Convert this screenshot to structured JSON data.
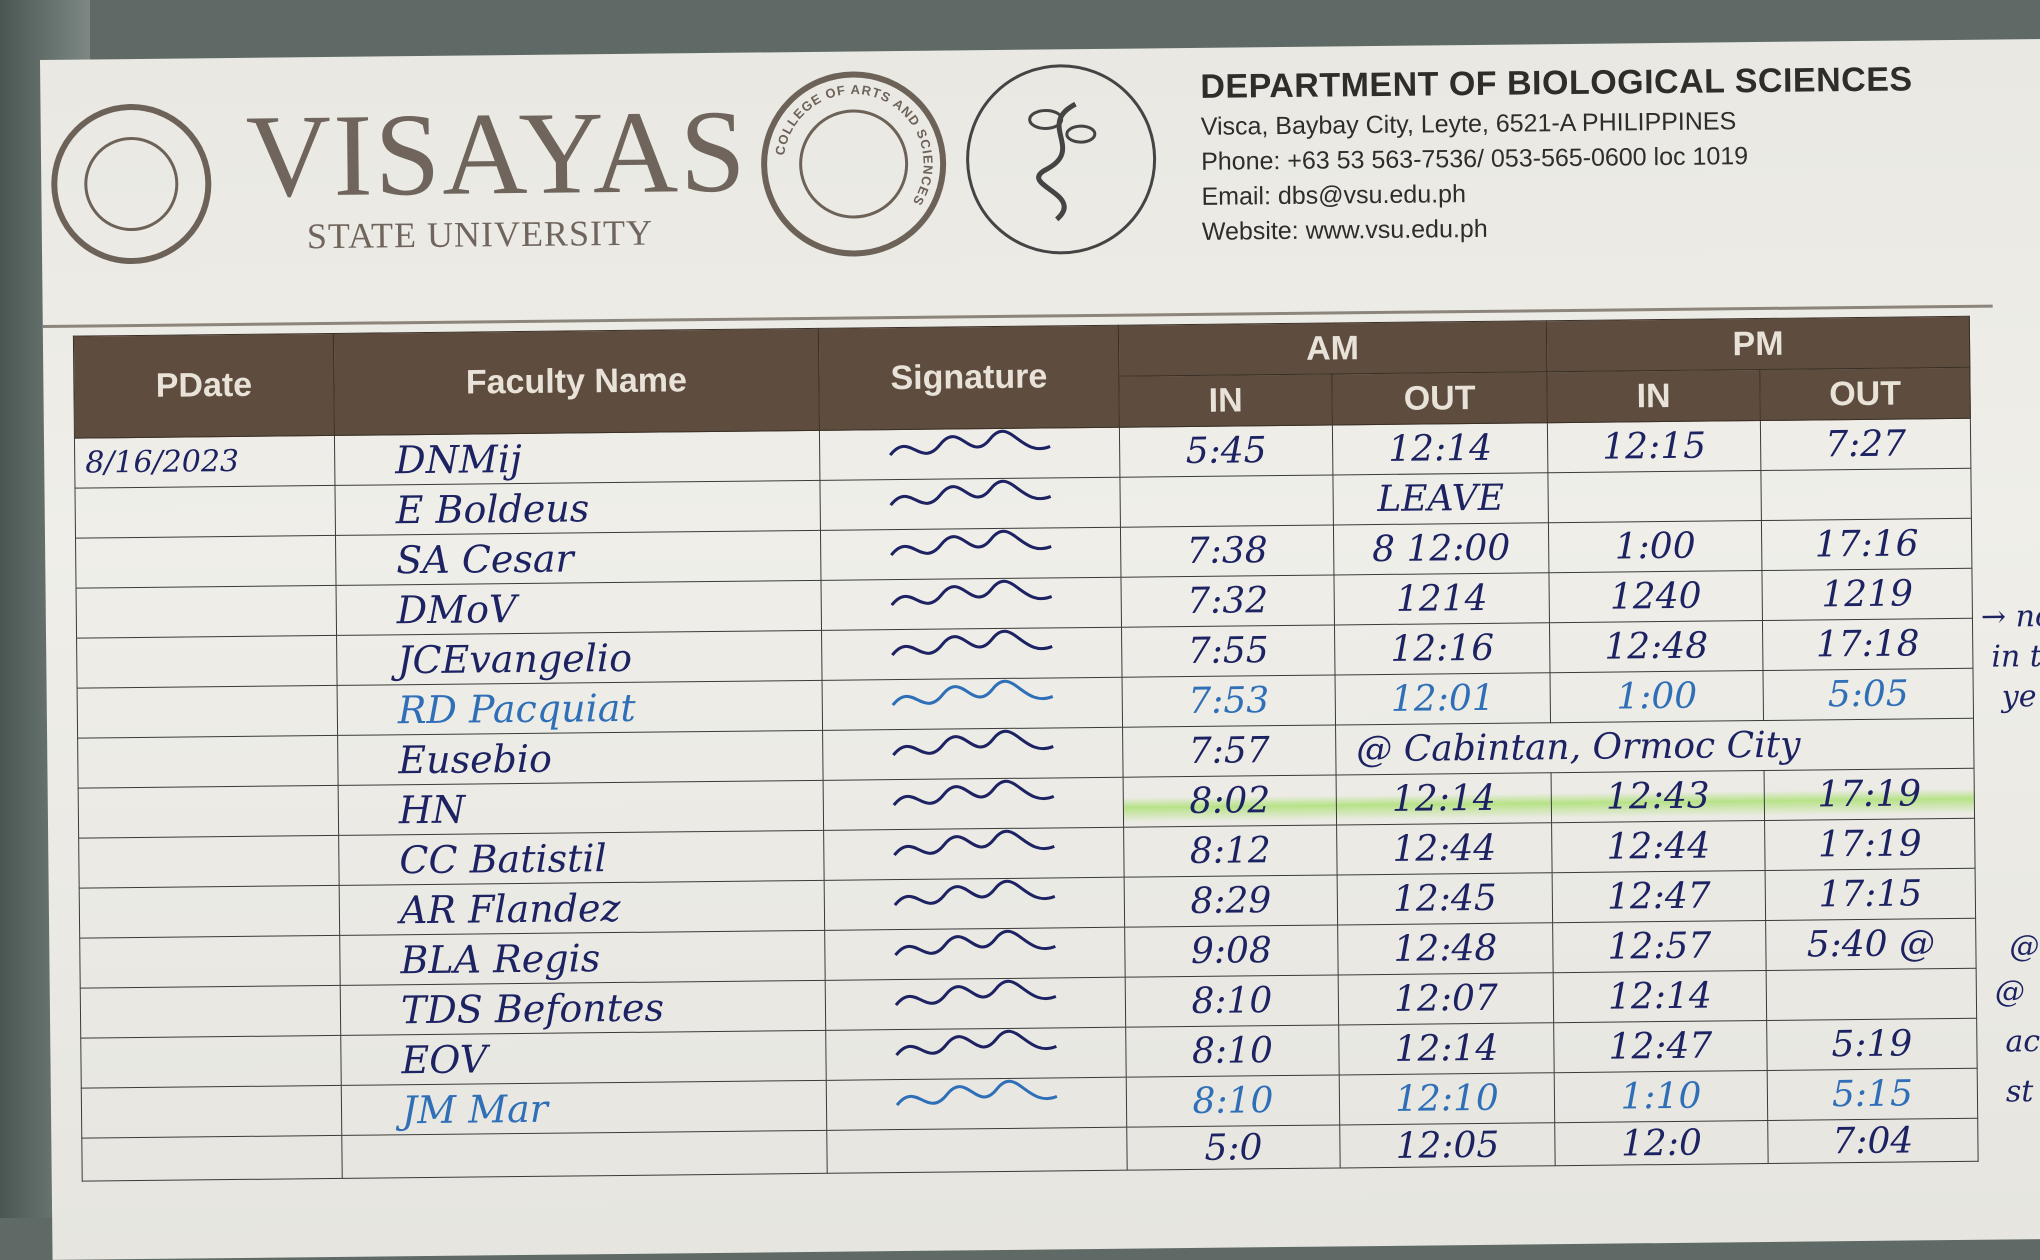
{
  "header": {
    "university": "VISAYAS",
    "university_sub": "STATE UNIVERSITY",
    "seal_text": "VISAYAS STATE UNIVERSITY",
    "college_seal_text": "COLLEGE OF ARTS AND SCIENCES",
    "department": "DEPARTMENT OF BIOLOGICAL SCIENCES",
    "address": "Visca, Baybay City, Leyte, 6521-A PHILIPPINES",
    "phone": "Phone: +63 53 563-7536/ 053-565-0600 loc 1019",
    "email": "Email: dbs@vsu.edu.ph",
    "website": "Website: www.vsu.edu.ph"
  },
  "table": {
    "columns": {
      "date": "PDate",
      "name": "Faculty Name",
      "signature": "Signature",
      "am": "AM",
      "pm": "PM",
      "in": "IN",
      "out": "OUT"
    },
    "highlight_color": "#8cdc3c",
    "ink_colors": {
      "black": "#1c2262",
      "blue": "#2f6fb8"
    },
    "rows": [
      {
        "date": "8/16/2023",
        "name": "DNMij",
        "am_in": "5:45",
        "am_out": "12:14",
        "pm_in": "12:15",
        "pm_out": "7:27"
      },
      {
        "date": "",
        "name": "E Boldeus",
        "am_in": "",
        "am_out": "LEAVE",
        "pm_in": "",
        "pm_out": ""
      },
      {
        "date": "",
        "name": "SA Cesar",
        "am_in": "7:38",
        "am_out": "8 12:00",
        "pm_in": "1:00",
        "pm_out": "17:16"
      },
      {
        "date": "",
        "name": "DMoV",
        "am_in": "7:32",
        "am_out": "1214",
        "pm_in": "1240",
        "pm_out": "1219"
      },
      {
        "date": "",
        "name": "JCEvangelio",
        "am_in": "7:55",
        "am_out": "12:16",
        "pm_in": "12:48",
        "pm_out": "17:18"
      },
      {
        "date": "",
        "name": "RD Pacquiat",
        "am_in": "7:53",
        "am_out": "12:01",
        "pm_in": "1:00",
        "pm_out": "5:05",
        "ink": "blue"
      },
      {
        "date": "",
        "name": "Eusebio",
        "am_in": "7:57",
        "am_out": "@ Cabintan, Ormoc City",
        "pm_in": "",
        "pm_out": ""
      },
      {
        "date": "",
        "name": "HN",
        "am_in": "8:02",
        "am_out": "12:14",
        "pm_in": "12:43",
        "pm_out": "17:19",
        "highlighted": true
      },
      {
        "date": "",
        "name": "CC Batistil",
        "am_in": "8:12",
        "am_out": "12:44",
        "pm_in": "12:44",
        "pm_out": "17:19"
      },
      {
        "date": "",
        "name": "AR Flandez",
        "am_in": "8:29",
        "am_out": "12:45",
        "pm_in": "12:47",
        "pm_out": "17:15"
      },
      {
        "date": "",
        "name": "BLA Regis",
        "am_in": "9:08",
        "am_out": "12:48",
        "pm_in": "12:57",
        "pm_out": "5:40 @"
      },
      {
        "date": "",
        "name": "TDS Befontes",
        "am_in": "8:10",
        "am_out": "12:07",
        "pm_in": "12:14",
        "pm_out": ""
      },
      {
        "date": "",
        "name": "EOV",
        "am_in": "8:10",
        "am_out": "12:14",
        "pm_in": "12:47",
        "pm_out": "5:19"
      },
      {
        "date": "",
        "name": "JM Mar",
        "am_in": "8:10",
        "am_out": "12:10",
        "pm_in": "1:10",
        "pm_out": "5:15",
        "ink": "blue"
      },
      {
        "date": "",
        "name": "",
        "am_in": "5:0",
        "am_out": "12:05",
        "pm_in": "12:0",
        "pm_out": "7:04"
      }
    ]
  },
  "margin_notes": [
    "→ no",
    "in the",
    "ye",
    "@ B",
    "@",
    "ac",
    "st"
  ]
}
